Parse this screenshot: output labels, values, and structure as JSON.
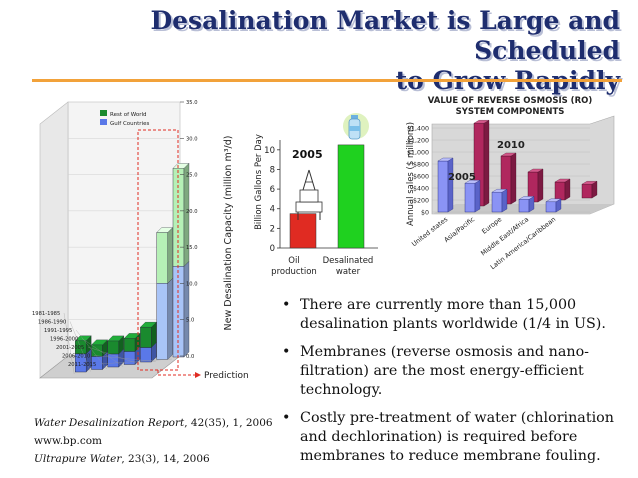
{
  "slide": {
    "title_line1": "Desalination Market is Large and Scheduled",
    "title_line2": "to Grow Rapidly",
    "bullets": [
      "There are currently more than 15,000 desalination plants worldwide (1/4 in US).",
      "Membranes (reverse osmosis and nano-filtration) are the most energy-efficient technology.",
      "Costly pre-treatment of water (chlorination and dechlorination) is required before membranes to reduce membrane fouling."
    ],
    "refs": [
      {
        "italic": "Water Desalinization Report",
        "rest": ", 42(35), 1, 2006"
      },
      {
        "italic": "",
        "rest": "www.bp.com"
      },
      {
        "italic": "Ultrapure Water",
        "rest": ", 23(3), 14, 2006"
      }
    ],
    "colors": {
      "title": "#1e2d6e",
      "rule": "#f2a23a",
      "red": "#e02b22",
      "green": "#1fd11f",
      "rest_of_world": "#1a8a2e",
      "gulf_countries": "#5a78e8"
    }
  },
  "chart_data": [
    {
      "type": "bar",
      "ylabel": "New Desalination Capacity (million m³/d)",
      "ylim": [
        0,
        35
      ],
      "yticks": [
        "0.0",
        "5.0",
        "10.0",
        "15.0",
        "20.0",
        "25.0",
        "30.0",
        "35.0"
      ],
      "categories": [
        "1981-1985",
        "1986-1990",
        "1991-1995",
        "1996-2000",
        "2001-2005",
        "2006-2010",
        "2011-2015"
      ],
      "series": [
        {
          "name": "Rest of World",
          "values": [
            1.8,
            1.6,
            1.8,
            1.8,
            2.8,
            7.0,
            13.5
          ]
        },
        {
          "name": "Gulf Countries",
          "values": [
            2.5,
            1.8,
            1.8,
            1.8,
            2.0,
            10.5,
            12.5
          ]
        }
      ],
      "annotation": "Prediction",
      "legend": "top-left"
    },
    {
      "type": "bar",
      "ylabel": "Billion Gallons Per Day",
      "ylim": [
        0,
        11
      ],
      "yticks": [
        "0",
        "2",
        "4",
        "6",
        "8",
        "10"
      ],
      "categories": [
        "Oil production",
        "Desalinated water"
      ],
      "values": [
        3.5,
        10.5
      ],
      "annotation": "2005"
    },
    {
      "type": "bar",
      "title": "VALUE OF REVERSE OSMOSIS (RO) SYSTEM COMPONENTS",
      "ylabel": "Annual sales ($ millions)",
      "ylim": [
        0,
        1400
      ],
      "yticks": [
        "$0",
        "$200",
        "$400",
        "$600",
        "$800",
        "$1,000",
        "$1,200",
        "$1,400"
      ],
      "categories": [
        "United states",
        "Asia/Pacific",
        "Europe",
        "Middle East/Africa",
        "Latin America/Caribbean"
      ],
      "series": [
        {
          "name": "2005",
          "values": [
            850,
            480,
            330,
            210,
            170
          ]
        },
        {
          "name": "2010",
          "values": [
            1380,
            800,
            500,
            300,
            230
          ]
        }
      ]
    }
  ]
}
